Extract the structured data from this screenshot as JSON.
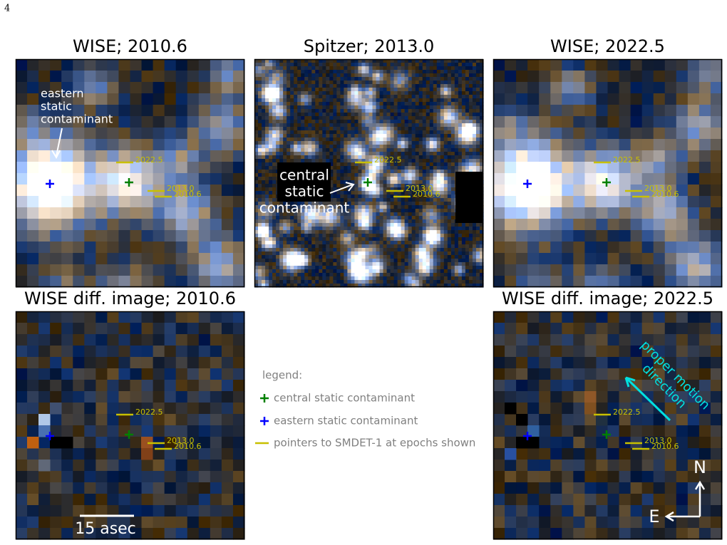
{
  "page_number": "4",
  "panels": [
    {
      "title": "WISE; 2010.6",
      "annotation": [
        "eastern",
        "static",
        "contaminant"
      ],
      "epoch_labels": [
        "2022.5",
        "2013.0",
        "2010.6"
      ]
    },
    {
      "title": "Spitzer; 2013.0",
      "annotation": [
        "central",
        "static",
        "contaminant"
      ],
      "epoch_labels": [
        "2022.5",
        "2013.0",
        "2010.6"
      ]
    },
    {
      "title": "WISE; 2022.5",
      "epoch_labels": [
        "2022.5",
        "2013.0",
        "2010.6"
      ]
    },
    {
      "title": "WISE diff. image; 2010.6",
      "epoch_labels": [
        "2022.5",
        "2013.0",
        "2010.6"
      ],
      "scale_bar": "15 asec"
    },
    {
      "title": "WISE diff. image; 2022.5",
      "epoch_labels": [
        "2022.5",
        "2013.0",
        "2010.6"
      ],
      "proper_motion": [
        "proper motion",
        "direction"
      ],
      "compass": {
        "north": "N",
        "east": "E"
      }
    }
  ],
  "legend": {
    "title": "legend:",
    "items": [
      "central static contaminant",
      "eastern static contaminant",
      "pointers to SMDET-1 at epochs shown"
    ]
  }
}
